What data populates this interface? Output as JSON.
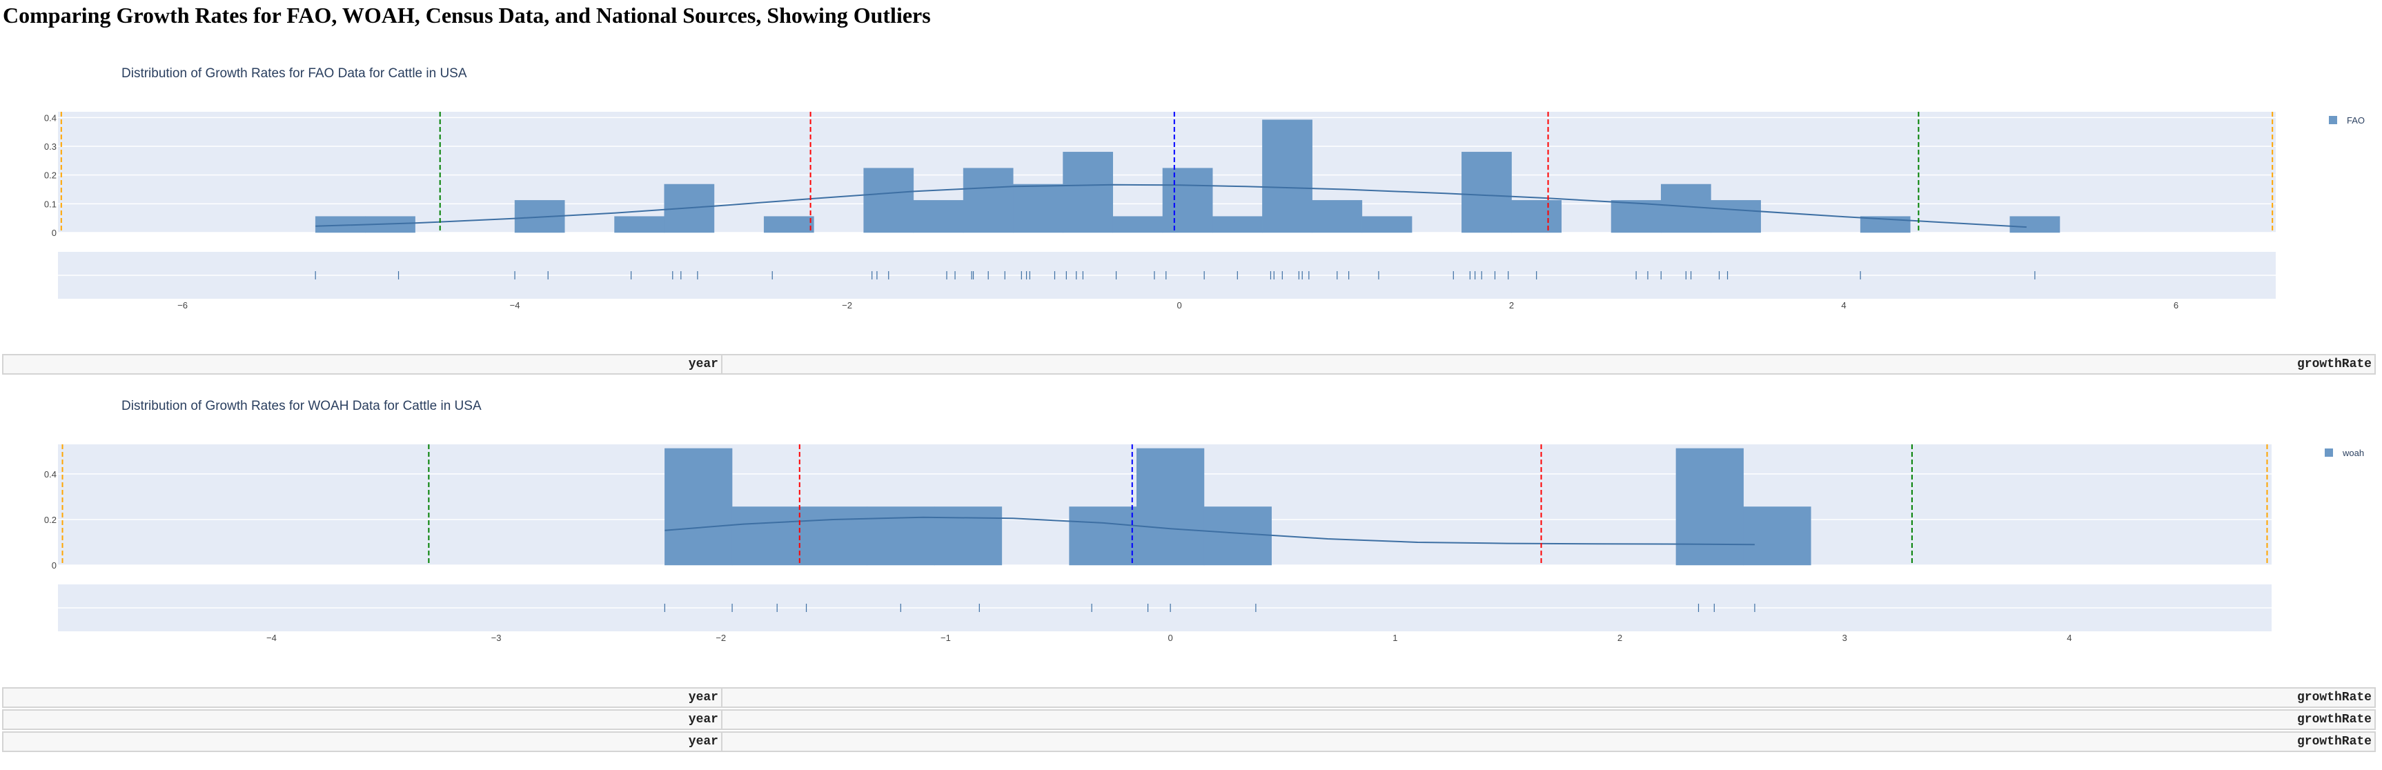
{
  "page": {
    "title": "Comparing Growth Rates for FAO, WOAH, Census Data, and National Sources, Showing Outliers"
  },
  "colors": {
    "bar": "#6c99c6",
    "kde": "#3d6fa3",
    "plot_bg": "#e5ebf6",
    "grid": "#ffffff",
    "mean_line": "#0000ff",
    "sd1_line": "#ff0000",
    "sd2_line": "#008000",
    "sd3_line": "#ffa500",
    "title_text": "#2a3f5f"
  },
  "tables": [
    {
      "header": [
        "year",
        "growthRate"
      ]
    },
    {
      "header": [
        "year",
        "growthRate"
      ]
    },
    {
      "header": [
        "year",
        "growthRate"
      ]
    },
    {
      "header": [
        "year",
        "growthRate"
      ]
    }
  ],
  "chart_data": [
    {
      "type": "bar",
      "subtype": "histogram-with-kde-and-rug",
      "title": "Distribution of Growth Rates for FAO Data for Cattle in USA",
      "legend": [
        "FAO"
      ],
      "legend_position": "top-right",
      "xlim": [
        -6.75,
        6.6
      ],
      "ylim": [
        0,
        0.42
      ],
      "xticks": [
        -6,
        -4,
        -2,
        0,
        2,
        4,
        6
      ],
      "xtick_labels": [
        "−6",
        "−4",
        "−2",
        "0",
        "2",
        "4",
        "6"
      ],
      "yticks": [
        0,
        0.1,
        0.2,
        0.3,
        0.4
      ],
      "ytick_labels": [
        "0",
        "0.1",
        "0.2",
        "0.3",
        "0.4"
      ],
      "bin_width": 0.3,
      "bins": [
        {
          "x0": -5.2,
          "x1": -4.9,
          "y": 0.056
        },
        {
          "x0": -4.9,
          "x1": -4.6,
          "y": 0.056
        },
        {
          "x0": -4.0,
          "x1": -3.7,
          "y": 0.112
        },
        {
          "x0": -3.4,
          "x1": -3.1,
          "y": 0.056
        },
        {
          "x0": -3.1,
          "x1": -2.8,
          "y": 0.168
        },
        {
          "x0": -2.5,
          "x1": -2.2,
          "y": 0.056
        },
        {
          "x0": -1.9,
          "x1": -1.6,
          "y": 0.224
        },
        {
          "x0": -1.6,
          "x1": -1.3,
          "y": 0.112
        },
        {
          "x0": -1.3,
          "x1": -1.0,
          "y": 0.224
        },
        {
          "x0": -1.0,
          "x1": -0.7,
          "y": 0.168
        },
        {
          "x0": -0.7,
          "x1": -0.4,
          "y": 0.28
        },
        {
          "x0": -0.4,
          "x1": -0.1,
          "y": 0.056
        },
        {
          "x0": -0.1,
          "x1": 0.2,
          "y": 0.224
        },
        {
          "x0": 0.2,
          "x1": 0.5,
          "y": 0.056
        },
        {
          "x0": 0.5,
          "x1": 0.8,
          "y": 0.392
        },
        {
          "x0": 0.8,
          "x1": 1.1,
          "y": 0.112
        },
        {
          "x0": 1.1,
          "x1": 1.4,
          "y": 0.056
        },
        {
          "x0": 1.7,
          "x1": 2.0,
          "y": 0.28
        },
        {
          "x0": 2.0,
          "x1": 2.3,
          "y": 0.112
        },
        {
          "x0": 2.6,
          "x1": 2.9,
          "y": 0.112
        },
        {
          "x0": 2.9,
          "x1": 3.2,
          "y": 0.168
        },
        {
          "x0": 3.2,
          "x1": 3.5,
          "y": 0.112
        },
        {
          "x0": 4.1,
          "x1": 4.4,
          "y": 0.056
        },
        {
          "x0": 5.0,
          "x1": 5.3,
          "y": 0.056
        }
      ],
      "kde": {
        "x": [
          -5.2,
          -4.6,
          -4.0,
          -3.4,
          -2.8,
          -2.2,
          -1.6,
          -1.0,
          -0.4,
          0.0,
          0.4,
          1.0,
          1.6,
          2.2,
          2.8,
          3.4,
          4.0,
          4.6,
          5.1
        ],
        "y": [
          0.022,
          0.033,
          0.049,
          0.068,
          0.092,
          0.118,
          0.143,
          0.16,
          0.166,
          0.165,
          0.16,
          0.15,
          0.136,
          0.12,
          0.1,
          0.077,
          0.055,
          0.035,
          0.019
        ]
      },
      "rug": [
        -5.2,
        -4.7,
        -4.0,
        -3.8,
        -3.3,
        -3.05,
        -3.0,
        -2.9,
        -2.45,
        -1.85,
        -1.82,
        -1.75,
        -1.4,
        -1.35,
        -1.25,
        -1.24,
        -1.15,
        -1.05,
        -0.95,
        -0.92,
        -0.9,
        -0.75,
        -0.68,
        -0.62,
        -0.58,
        -0.38,
        -0.15,
        -0.08,
        0.15,
        0.35,
        0.55,
        0.57,
        0.62,
        0.72,
        0.74,
        0.78,
        0.95,
        1.02,
        1.2,
        1.65,
        1.75,
        1.78,
        1.82,
        1.9,
        1.98,
        2.15,
        2.75,
        2.82,
        2.9,
        3.05,
        3.08,
        3.25,
        3.3,
        4.1,
        5.15
      ],
      "reference_lines": [
        {
          "x": -0.03,
          "kind": "mean"
        },
        {
          "x": -2.22,
          "kind": "sd1"
        },
        {
          "x": 2.22,
          "kind": "sd1"
        },
        {
          "x": -4.45,
          "kind": "sd2"
        },
        {
          "x": 4.45,
          "kind": "sd2"
        },
        {
          "x": -6.73,
          "kind": "sd3"
        },
        {
          "x": 6.58,
          "kind": "sd3"
        }
      ]
    },
    {
      "type": "bar",
      "subtype": "histogram-with-kde-and-rug",
      "title": "Distribution of Growth Rates for WOAH Data for Cattle in USA",
      "legend": [
        "woah"
      ],
      "legend_position": "top-right",
      "xlim": [
        -4.95,
        4.9
      ],
      "ylim": [
        0,
        0.53
      ],
      "xticks": [
        -4,
        -3,
        -2,
        -1,
        0,
        1,
        2,
        3,
        4
      ],
      "xtick_labels": [
        "−4",
        "−3",
        "−2",
        "−1",
        "0",
        "1",
        "2",
        "3",
        "4"
      ],
      "yticks": [
        0,
        0.2,
        0.4
      ],
      "ytick_labels": [
        "0",
        "0.2",
        "0.4"
      ],
      "bin_width": 0.3,
      "bins": [
        {
          "x0": -2.25,
          "x1": -1.95,
          "y": 0.512
        },
        {
          "x0": -1.95,
          "x1": -1.65,
          "y": 0.256
        },
        {
          "x0": -1.65,
          "x1": -1.35,
          "y": 0.256
        },
        {
          "x0": -1.35,
          "x1": -1.05,
          "y": 0.256
        },
        {
          "x0": -1.05,
          "x1": -0.75,
          "y": 0.256
        },
        {
          "x0": -0.45,
          "x1": -0.15,
          "y": 0.256
        },
        {
          "x0": -0.15,
          "x1": 0.15,
          "y": 0.512
        },
        {
          "x0": 0.15,
          "x1": 0.45,
          "y": 0.256
        },
        {
          "x0": 2.25,
          "x1": 2.55,
          "y": 0.512
        },
        {
          "x0": 2.55,
          "x1": 2.85,
          "y": 0.256
        }
      ],
      "kde": {
        "x": [
          -2.25,
          -1.9,
          -1.5,
          -1.1,
          -0.7,
          -0.3,
          0.0,
          0.3,
          0.7,
          1.1,
          1.5,
          1.9,
          2.3,
          2.6
        ],
        "y": [
          0.152,
          0.18,
          0.2,
          0.21,
          0.205,
          0.185,
          0.16,
          0.14,
          0.115,
          0.1,
          0.095,
          0.093,
          0.092,
          0.09
        ]
      },
      "rug": [
        -2.25,
        -1.95,
        -1.75,
        -1.62,
        -1.2,
        -0.85,
        -0.35,
        -0.1,
        0.0,
        0.38,
        2.35,
        2.42,
        2.6
      ],
      "reference_lines": [
        {
          "x": -0.17,
          "kind": "mean"
        },
        {
          "x": -1.65,
          "kind": "sd1"
        },
        {
          "x": 1.65,
          "kind": "sd1"
        },
        {
          "x": -3.3,
          "kind": "sd2"
        },
        {
          "x": 3.3,
          "kind": "sd2"
        },
        {
          "x": -4.93,
          "kind": "sd3"
        },
        {
          "x": 4.88,
          "kind": "sd3"
        }
      ]
    }
  ]
}
